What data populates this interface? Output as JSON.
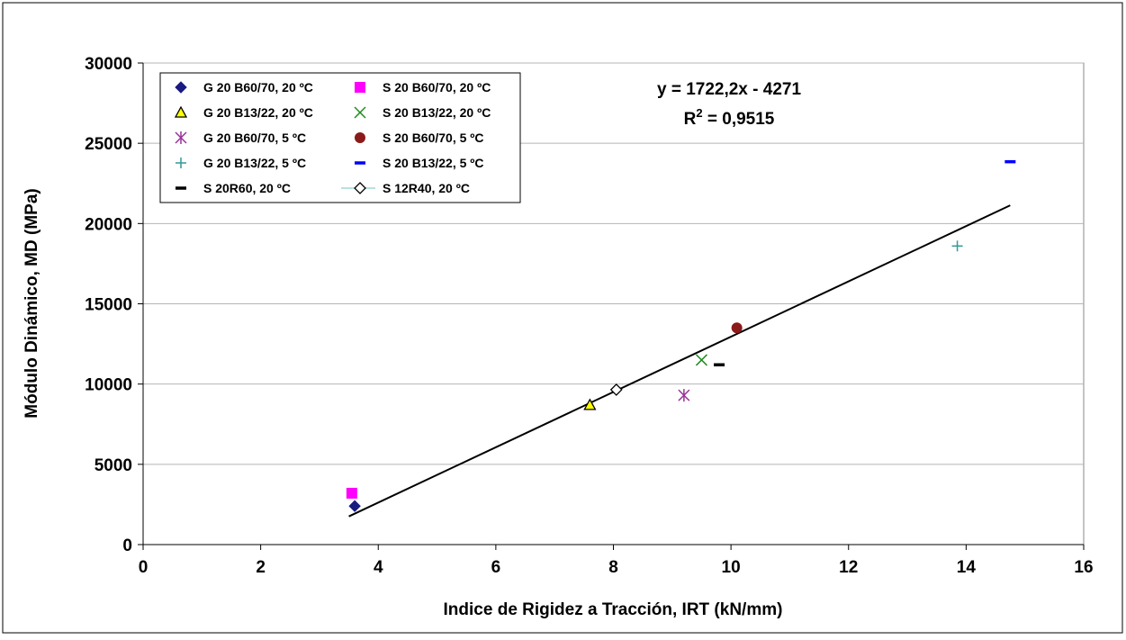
{
  "chart_data": {
    "type": "scatter",
    "title": "",
    "xlabel": "Indice de Rigidez a Tracción, IRT (kN/mm)",
    "ylabel": "Módulo Dinámico, MD (MPa)",
    "xlim": [
      0,
      16
    ],
    "ylim": [
      0,
      30000
    ],
    "x_ticks": [
      0,
      2,
      4,
      6,
      8,
      10,
      12,
      14,
      16
    ],
    "y_ticks": [
      0,
      5000,
      10000,
      15000,
      20000,
      25000,
      30000
    ],
    "grid": "horizontal",
    "legend_position": "top-left",
    "series": [
      {
        "name": "G 20 B60/70, 20 ºC",
        "marker": "diamond",
        "color": "#1a1a80",
        "points": [
          [
            3.6,
            2400
          ]
        ]
      },
      {
        "name": "S 20 B60/70, 20 ºC",
        "marker": "square",
        "color": "#ff00ff",
        "points": [
          [
            3.55,
            3200
          ]
        ]
      },
      {
        "name": "G 20 B13/22, 20 ºC",
        "marker": "triangle",
        "color": "#ffff00",
        "points": [
          [
            7.6,
            8700
          ]
        ]
      },
      {
        "name": "S 20 B13/22, 20 ºC",
        "marker": "x",
        "color": "#228b22",
        "points": [
          [
            9.5,
            11500
          ]
        ]
      },
      {
        "name": "G 20 B60/70, 5 ºC",
        "marker": "star",
        "color": "#993399",
        "points": [
          [
            9.2,
            9300
          ]
        ]
      },
      {
        "name": "S 20 B60/70, 5 ºC",
        "marker": "circle",
        "color": "#8b1a1a",
        "points": [
          [
            10.1,
            13500
          ]
        ]
      },
      {
        "name": "G 20 B13/22, 5 ºC",
        "marker": "plus",
        "color": "#339999",
        "points": [
          [
            13.85,
            18600
          ]
        ]
      },
      {
        "name": "S 20 B13/22, 5 ºC",
        "marker": "dash",
        "color": "#0000ff",
        "points": [
          [
            14.75,
            23850
          ]
        ]
      },
      {
        "name": "S 20R60, 20 ºC",
        "marker": "dash",
        "color": "#000000",
        "points": [
          [
            9.8,
            11200
          ]
        ]
      },
      {
        "name": "S 12R40, 20 ºC",
        "marker": "open-diamond",
        "color": "#000000",
        "points": [
          [
            8.05,
            9650
          ]
        ]
      }
    ],
    "trendline": {
      "slope": 1722.2,
      "intercept": -4271,
      "x_range": [
        3.5,
        14.75
      ]
    },
    "annotation": {
      "equation": "y = 1722,2x - 4271",
      "r2_prefix": "R",
      "r2_sup": "2",
      "r2_value": " = 0,9515"
    }
  }
}
